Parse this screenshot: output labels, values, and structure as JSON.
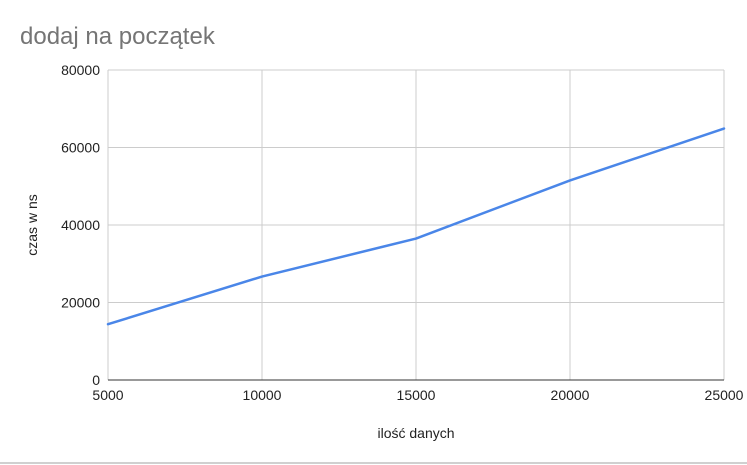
{
  "chart_data": {
    "type": "line",
    "title": "dodaj na początek",
    "xlabel": "ilość danych",
    "ylabel": "czas w ns",
    "x": [
      5000,
      10000,
      15000,
      20000,
      25000
    ],
    "xticks": [
      5000,
      10000,
      15000,
      20000,
      25000
    ],
    "yticks": [
      0,
      20000,
      40000,
      60000,
      80000
    ],
    "xlim": [
      5000,
      25000
    ],
    "ylim": [
      0,
      80000
    ],
    "grid": true,
    "legend": "none",
    "series": [
      {
        "values": [
          14400,
          26700,
          36500,
          51500,
          64900
        ],
        "color": "#4a86e8"
      }
    ]
  }
}
